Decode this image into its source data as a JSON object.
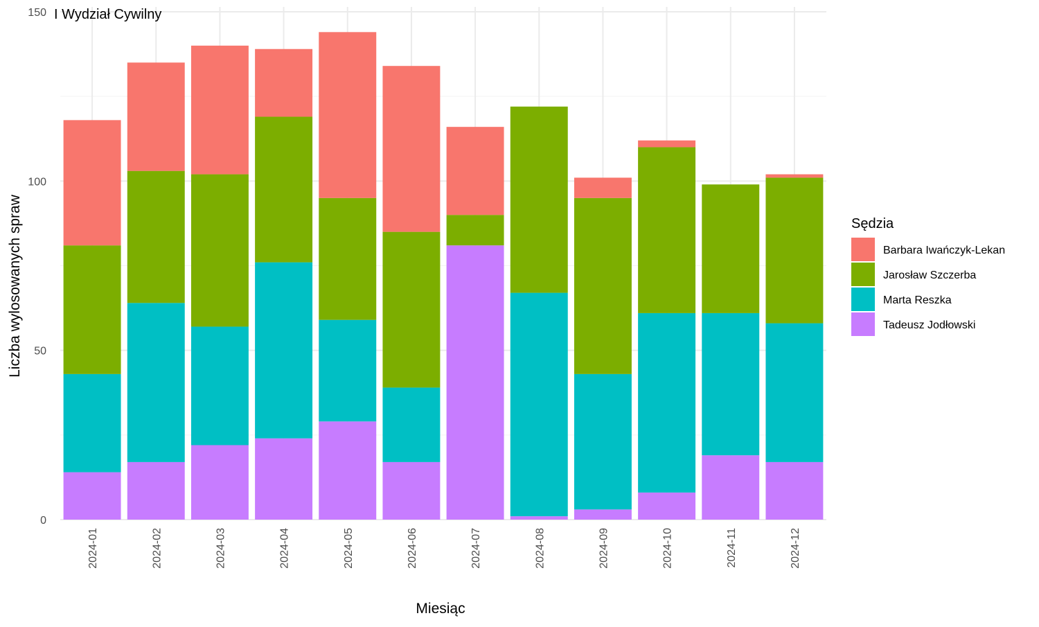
{
  "chart_data": {
    "type": "bar",
    "stacked": true,
    "title": "I Wydział Cywilny",
    "xlabel": "Miesiąc",
    "ylabel": "Liczba wylosowanych spraw",
    "ylim": [
      0,
      150
    ],
    "y_ticks": [
      0,
      50,
      100,
      150
    ],
    "grid": true,
    "legend_title": "Sędzia",
    "legend_position": "right",
    "categories": [
      "2024-01",
      "2024-02",
      "2024-03",
      "2024-04",
      "2024-05",
      "2024-06",
      "2024-07",
      "2024-08",
      "2024-09",
      "2024-10",
      "2024-11",
      "2024-12"
    ],
    "series": [
      {
        "name": "Barbara Iwańczyk-Lekan",
        "color": "#F8766D",
        "values": [
          37,
          32,
          38,
          20,
          49,
          49,
          26,
          0,
          6,
          2,
          0,
          1
        ]
      },
      {
        "name": "Jarosław Szczerba",
        "color": "#7CAE00",
        "values": [
          38,
          39,
          45,
          43,
          36,
          46,
          9,
          55,
          52,
          49,
          38,
          43
        ]
      },
      {
        "name": "Marta Reszka",
        "color": "#00BFC4",
        "values": [
          29,
          47,
          35,
          52,
          30,
          22,
          0,
          66,
          40,
          53,
          42,
          41
        ]
      },
      {
        "name": "Tadeusz Jodłowski",
        "color": "#C77CFF",
        "values": [
          14,
          17,
          22,
          24,
          29,
          17,
          81,
          1,
          3,
          8,
          19,
          17
        ]
      }
    ],
    "stack_order_bottom_to_top": [
      "Tadeusz Jodłowski",
      "Marta Reszka",
      "Jarosław Szczerba",
      "Barbara Iwańczyk-Lekan"
    ]
  }
}
